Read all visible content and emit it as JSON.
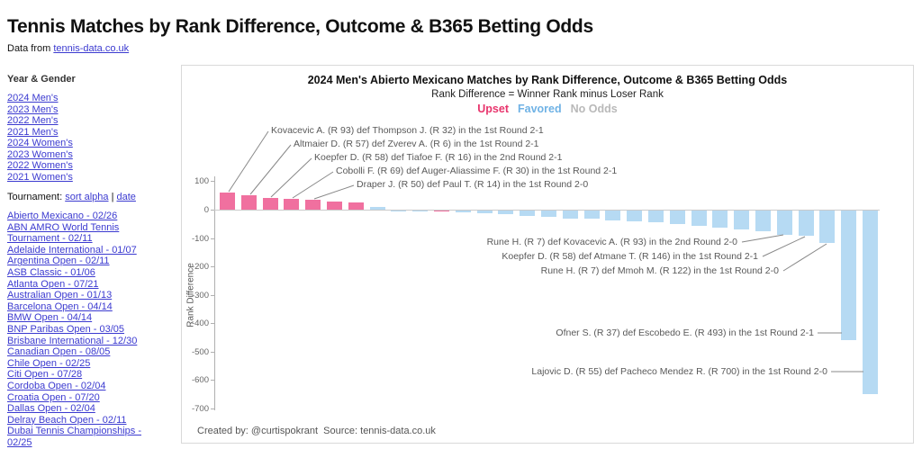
{
  "page": {
    "title": "Tennis Matches by Rank Difference, Outcome & B365 Betting Odds",
    "data_from": {
      "prefix": "Data from ",
      "link": "tennis-data.co.uk"
    }
  },
  "colors": {
    "link": "#3b3ad0",
    "upset_bar": "#f0709f",
    "favored_bar": "#b6daf3",
    "no_odds_bar": "#c9c9c9",
    "upset_legend": "#e8356d",
    "favored_legend": "#6fb2e5",
    "no_odds_legend": "#b9b9b9",
    "axis_gray": "#b0b0b0",
    "annotation_gray": "#595959"
  },
  "sidebar": {
    "header": "Year & Gender",
    "year_links": [
      "2024 Men's",
      "2023 Men's",
      "2022 Men's",
      "2021 Men's",
      "2024 Women's",
      "2023 Women's",
      "2022 Women's",
      "2021 Women's"
    ],
    "tournament": {
      "label": "Tournament: ",
      "sort_alpha": "sort alpha",
      "divider": " | ",
      "date": "date"
    },
    "tournaments": [
      "Abierto Mexicano - 02/26",
      "ABN AMRO World Tennis Tournament - 02/11",
      "Adelaide International - 01/07",
      "Argentina Open - 02/11",
      "ASB Classic - 01/06",
      "Atlanta Open - 07/21",
      "Australian Open - 01/13",
      "Barcelona Open - 04/14",
      "BMW Open - 04/14",
      "BNP Paribas Open - 03/05",
      "Brisbane International - 12/30",
      "Canadian Open - 08/05",
      "Chile Open - 02/25",
      "Citi Open - 07/28",
      "Cordoba Open - 02/04",
      "Croatia Open - 07/20",
      "Dallas Open - 02/04",
      "Delray Beach Open - 02/11",
      "Dubai Tennis Championships - 02/25"
    ]
  },
  "chart": {
    "title": "2024 Men's Abierto Mexicano Matches by Rank Difference, Outcome & B365 Betting Odds",
    "subtitle": "Rank Difference = Winner Rank minus Loser Rank",
    "legend": [
      {
        "label": "Upset",
        "color": "#e8356d"
      },
      {
        "label": "Favored",
        "color": "#6fb2e5"
      },
      {
        "label": "No Odds",
        "color": "#b9b9b9"
      }
    ],
    "footer": "Created by: @curtispokrant  Source: tennis-data.co.uk"
  },
  "chart_data": {
    "type": "bar",
    "title": "2024 Men's Abierto Mexicano Matches by Rank Difference, Outcome & B365 Betting Odds",
    "subtitle": "Rank Difference = Winner Rank minus Loser Rank",
    "ylabel": "Rank Difference",
    "ylim": [
      -700,
      100
    ],
    "yticks": [
      100,
      0,
      -100,
      -200,
      -300,
      -400,
      -500,
      -600,
      -700
    ],
    "grid": false,
    "legend_position": "top-center",
    "series_colors": {
      "upset": "#f0709f",
      "favored": "#b6daf3",
      "no_odds": "#c9c9c9"
    },
    "bars": [
      {
        "value": 61,
        "outcome": "upset"
      },
      {
        "value": 51,
        "outcome": "upset"
      },
      {
        "value": 42,
        "outcome": "upset"
      },
      {
        "value": 39,
        "outcome": "upset"
      },
      {
        "value": 36,
        "outcome": "upset"
      },
      {
        "value": 30,
        "outcome": "upset"
      },
      {
        "value": 26,
        "outcome": "upset"
      },
      {
        "value": 8,
        "outcome": "favored"
      },
      {
        "value": -1,
        "outcome": "favored"
      },
      {
        "value": -2,
        "outcome": "favored"
      },
      {
        "value": -4,
        "outcome": "upset"
      },
      {
        "value": -6,
        "outcome": "favored"
      },
      {
        "value": -8,
        "outcome": "favored"
      },
      {
        "value": -14,
        "outcome": "favored"
      },
      {
        "value": -19,
        "outcome": "favored"
      },
      {
        "value": -23,
        "outcome": "favored"
      },
      {
        "value": -27,
        "outcome": "favored"
      },
      {
        "value": -30,
        "outcome": "favored"
      },
      {
        "value": -34,
        "outcome": "favored"
      },
      {
        "value": -38,
        "outcome": "favored"
      },
      {
        "value": -42,
        "outcome": "favored"
      },
      {
        "value": -48,
        "outcome": "favored"
      },
      {
        "value": -53,
        "outcome": "favored"
      },
      {
        "value": -60,
        "outcome": "favored"
      },
      {
        "value": -66,
        "outcome": "favored"
      },
      {
        "value": -73,
        "outcome": "favored"
      },
      {
        "value": -86,
        "outcome": "favored"
      },
      {
        "value": -88,
        "outcome": "favored"
      },
      {
        "value": -115,
        "outcome": "favored"
      },
      {
        "value": -456,
        "outcome": "favored"
      },
      {
        "value": -645,
        "outcome": "favored"
      }
    ],
    "annotations_top": [
      {
        "text": "Kovacevic A. (R 93) def Thompson J. (R 32) in the 1st Round 2-1",
        "bar": 0
      },
      {
        "text": "Altmaier D. (R 57) def Zverev A. (R 6) in the 1st Round 2-1",
        "bar": 1
      },
      {
        "text": "Koepfer D. (R 58) def Tiafoe F. (R 16) in the 2nd Round 2-1",
        "bar": 2
      },
      {
        "text": "Cobolli F. (R 69) def Auger-Aliassime F. (R 30) in the 1st Round 2-1",
        "bar": 3
      },
      {
        "text": "Draper J. (R 50) def Paul T. (R 14) in the 1st Round 2-0",
        "bar": 4
      }
    ],
    "annotations_bottom": [
      {
        "text": "Rune H. (R 7) def Kovacevic A. (R 93) in the 2nd Round 2-0",
        "bar": 26
      },
      {
        "text": "Koepfer D. (R 58) def Atmane T. (R 146) in the 1st Round 2-1",
        "bar": 27
      },
      {
        "text": "Rune H. (R 7) def Mmoh M. (R 122) in the 1st Round 2-0",
        "bar": 28
      },
      {
        "text": "Ofner S. (R 37) def Escobedo E. (R 493) in the 1st Round 2-1",
        "bar": 29
      },
      {
        "text": "Lajovic D. (R 55) def Pacheco Mendez R. (R 700) in the 1st Round 2-0",
        "bar": 30
      }
    ]
  }
}
